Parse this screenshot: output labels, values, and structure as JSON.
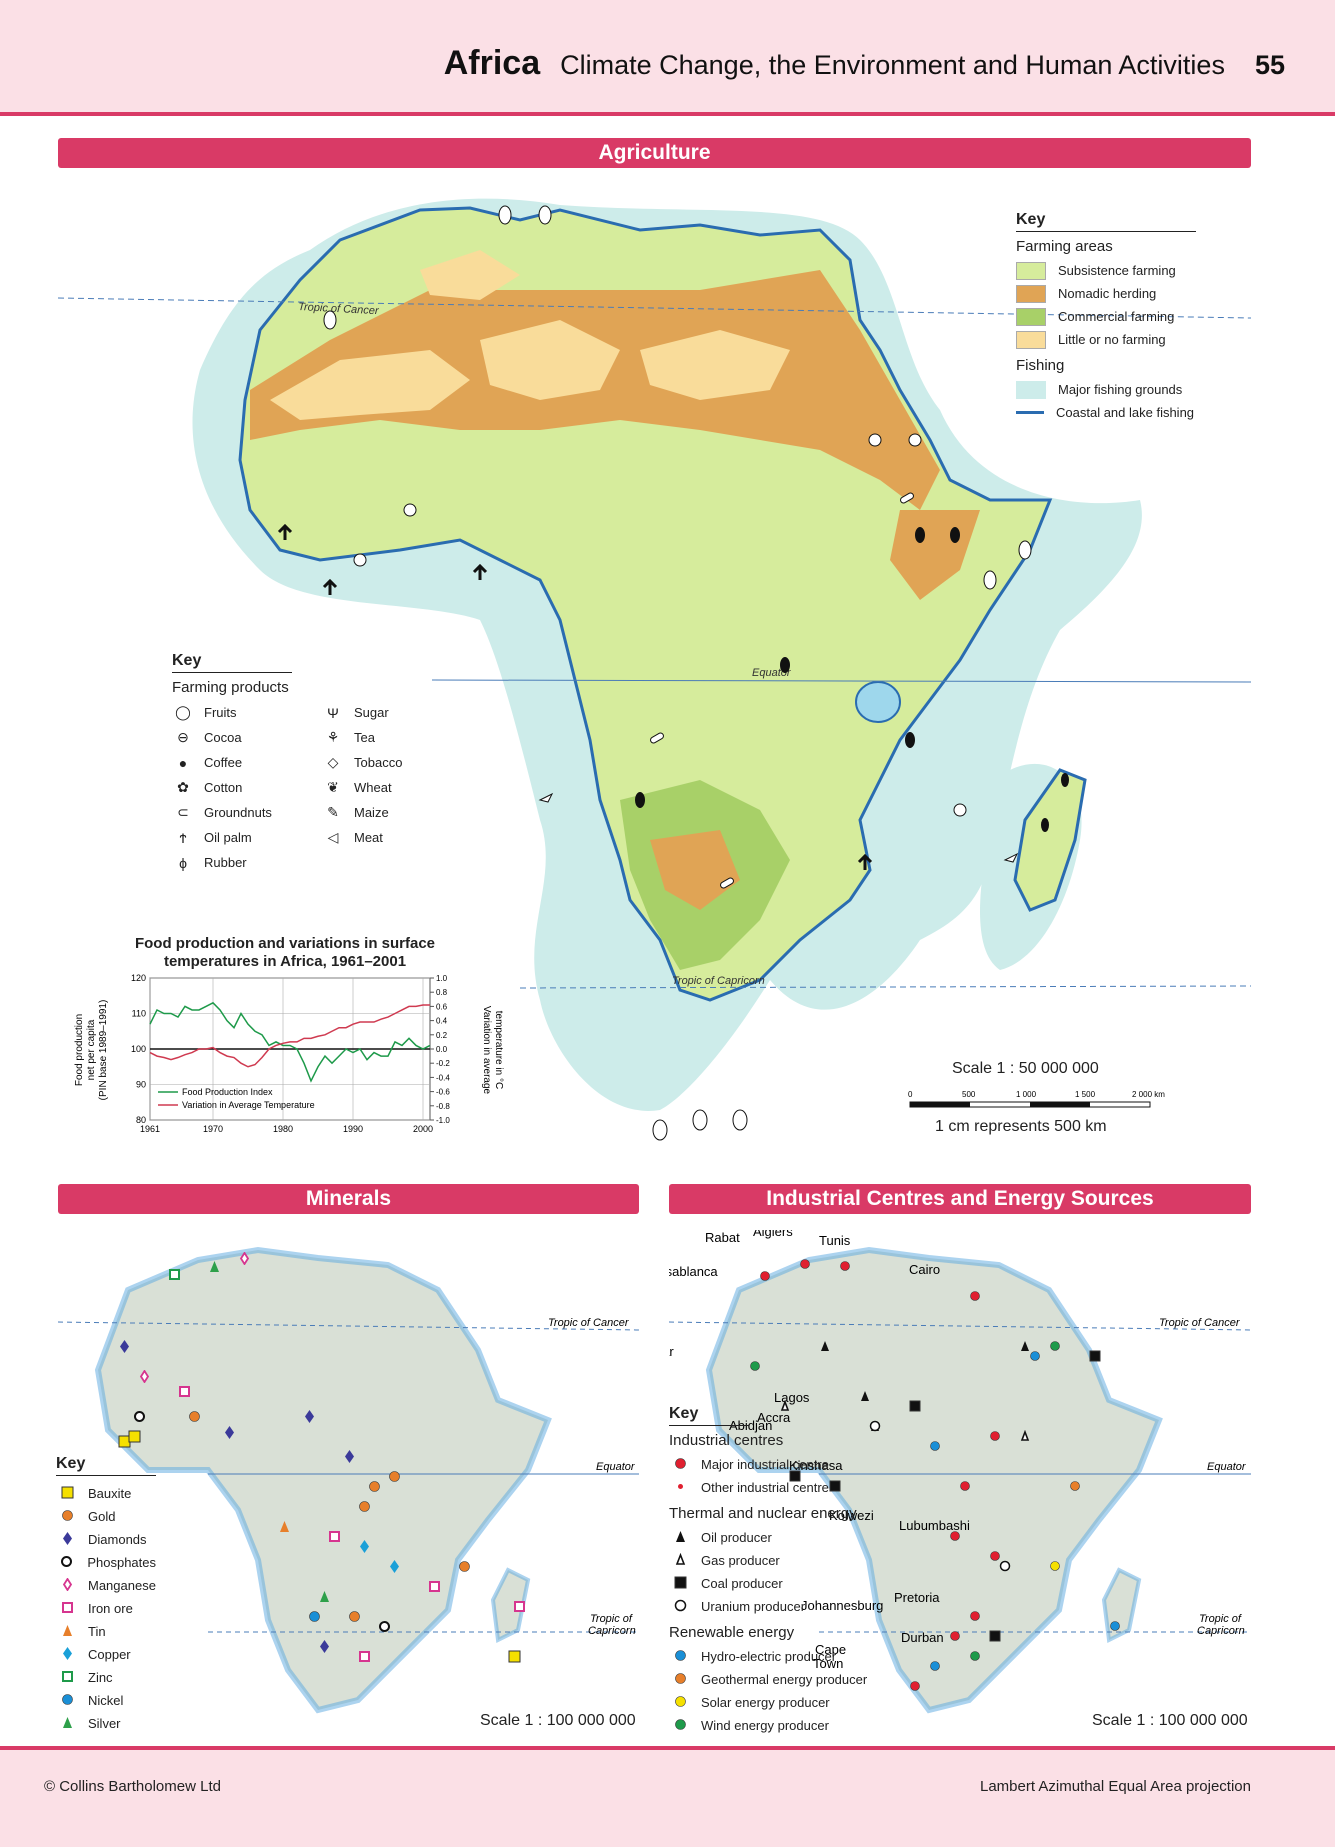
{
  "header": {
    "region": "Africa",
    "subtitle": "Climate Change, the Environment and Human Activities",
    "page": "55"
  },
  "banners": {
    "agriculture": "Agriculture",
    "minerals": "Minerals",
    "industry": "Industrial Centres and Energy Sources"
  },
  "map_labels": {
    "tropic_cancer": "Tropic of Cancer",
    "equator": "Equator",
    "tropic_capricorn": "Tropic of Capricorn",
    "tropic_of": "Tropic of",
    "capricorn": "Capricorn"
  },
  "agri_key": {
    "title": "Key",
    "farming_title": "Farming areas",
    "farming": [
      {
        "label": "Subsistence farming",
        "color": "#d6ec9c"
      },
      {
        "label": "Nomadic herding",
        "color": "#e0a455"
      },
      {
        "label": "Commercial farming",
        "color": "#a8d068"
      },
      {
        "label": "Little or no farming",
        "color": "#f9dc9a"
      }
    ],
    "fishing_title": "Fishing",
    "fishing": [
      {
        "label": "Major fishing grounds",
        "color": "#cdecea"
      },
      {
        "label": "Coastal and lake fishing",
        "color": "#2a6cb0"
      }
    ]
  },
  "products_key": {
    "title": "Key",
    "subtitle": "Farming products",
    "col1": [
      {
        "label": "Fruits",
        "icon": "fruit-icon"
      },
      {
        "label": "Cocoa",
        "icon": "cocoa-icon"
      },
      {
        "label": "Coffee",
        "icon": "coffee-icon"
      },
      {
        "label": "Cotton",
        "icon": "cotton-icon"
      },
      {
        "label": "Groundnuts",
        "icon": "groundnuts-icon"
      },
      {
        "label": "Oil palm",
        "icon": "oil-palm-icon"
      },
      {
        "label": "Rubber",
        "icon": "rubber-icon"
      }
    ],
    "col2": [
      {
        "label": "Sugar",
        "icon": "sugar-icon"
      },
      {
        "label": "Tea",
        "icon": "tea-icon"
      },
      {
        "label": "Tobacco",
        "icon": "tobacco-icon"
      },
      {
        "label": "Wheat",
        "icon": "wheat-icon"
      },
      {
        "label": "Maize",
        "icon": "maize-icon"
      },
      {
        "label": "Meat",
        "icon": "meat-icon"
      }
    ]
  },
  "agri_scale": {
    "ratio": "Scale 1 : 50 000 000",
    "ticks": [
      "0",
      "500",
      "1 000",
      "1 500",
      "2 000 km"
    ],
    "note": "1 cm represents 500 km"
  },
  "chart_data": {
    "type": "line",
    "title_line1": "Food production and variations in surface",
    "title_line2": "temperatures in Africa, 1961–2001",
    "ylabel_left_1": "Food production",
    "ylabel_left_2": "net per capita",
    "ylabel_left_3": "(PIN base 1989–1991)",
    "ylabel_right_1": "Variation in average",
    "ylabel_right_2": "temperature in °C",
    "xticks": [
      "1961",
      "1970",
      "1980",
      "1990",
      "2000"
    ],
    "yticks_left": [
      "80",
      "90",
      "100",
      "110",
      "120"
    ],
    "yticks_right": [
      "-1.0",
      "-0.8",
      "-0.6",
      "-0.4",
      "-0.2",
      "0.0",
      "0.2",
      "0.4",
      "0.6",
      "0.8",
      "1.0"
    ],
    "ylim_left": [
      80,
      120
    ],
    "ylim_right": [
      -1.0,
      1.0
    ],
    "xlim": [
      1961,
      2001
    ],
    "series": [
      {
        "name": "Food Production Index",
        "color": "#1e9a4a",
        "axis": "left",
        "x": [
          1961,
          1962,
          1963,
          1964,
          1965,
          1966,
          1967,
          1968,
          1969,
          1970,
          1971,
          1972,
          1973,
          1974,
          1975,
          1976,
          1977,
          1978,
          1979,
          1980,
          1981,
          1982,
          1983,
          1984,
          1985,
          1986,
          1987,
          1988,
          1989,
          1990,
          1991,
          1992,
          1993,
          1994,
          1995,
          1996,
          1997,
          1998,
          1999,
          2000,
          2001
        ],
        "values": [
          107,
          111,
          110,
          110,
          109,
          112,
          111,
          111,
          112,
          113,
          111,
          108,
          106,
          110,
          107,
          105,
          104,
          101,
          102,
          101,
          101,
          100,
          96,
          91,
          95,
          98,
          96,
          98,
          100,
          99,
          100,
          97,
          99,
          98,
          98,
          102,
          101,
          103,
          101,
          100,
          101
        ]
      },
      {
        "name": "Variation in Average Temperature",
        "color": "#cf3a50",
        "axis": "right",
        "x": [
          1961,
          1962,
          1963,
          1964,
          1965,
          1966,
          1967,
          1968,
          1969,
          1970,
          1971,
          1972,
          1973,
          1974,
          1975,
          1976,
          1977,
          1978,
          1979,
          1980,
          1981,
          1982,
          1983,
          1984,
          1985,
          1986,
          1987,
          1988,
          1989,
          1990,
          1991,
          1992,
          1993,
          1994,
          1995,
          1996,
          1997,
          1998,
          1999,
          2000,
          2001
        ],
        "values": [
          -0.05,
          -0.1,
          -0.12,
          -0.15,
          -0.12,
          -0.08,
          -0.05,
          0.0,
          0.0,
          0.02,
          -0.05,
          -0.1,
          -0.12,
          -0.2,
          -0.25,
          -0.22,
          -0.12,
          0.0,
          0.05,
          0.08,
          0.1,
          0.1,
          0.15,
          0.15,
          0.18,
          0.2,
          0.25,
          0.3,
          0.3,
          0.35,
          0.38,
          0.38,
          0.38,
          0.42,
          0.45,
          0.5,
          0.55,
          0.6,
          0.6,
          0.62,
          0.62
        ]
      }
    ]
  },
  "minerals_key": {
    "title": "Key",
    "items": [
      {
        "label": "Bauxite",
        "icon": "square-filled-icon",
        "color": "#f5e000"
      },
      {
        "label": "Gold",
        "icon": "circle-filled-icon",
        "color": "#e77f2a"
      },
      {
        "label": "Diamonds",
        "icon": "diamond-filled-icon",
        "color": "#3b3a9a"
      },
      {
        "label": "Phosphates",
        "icon": "circle-open-icon",
        "color": "#111111"
      },
      {
        "label": "Manganese",
        "icon": "diamond-open-icon",
        "color": "#d6358f"
      },
      {
        "label": "Iron ore",
        "icon": "square-open-icon",
        "color": "#d6358f"
      },
      {
        "label": "Tin",
        "icon": "triangle-filled-icon",
        "color": "#e77f2a"
      },
      {
        "label": "Copper",
        "icon": "diamond-filled-icon",
        "color": "#1aa0d8"
      },
      {
        "label": "Zinc",
        "icon": "square-open-icon",
        "color": "#1e9a4a"
      },
      {
        "label": "Nickel",
        "icon": "circle-filled-icon",
        "color": "#1a8fd6"
      },
      {
        "label": "Silver",
        "icon": "triangle-filled-icon",
        "color": "#2ea04a"
      }
    ]
  },
  "minerals_scale": "Scale 1 : 100 000 000",
  "industry_key": {
    "title": "Key",
    "sec1": "Industrial centres",
    "ind": [
      {
        "label": "Major industrial centre",
        "icon": "circle-filled-icon",
        "color": "#e02030"
      },
      {
        "label": "Other industrial centre",
        "icon": "dot-icon",
        "color": "#e02030"
      }
    ],
    "sec2": "Thermal and nuclear energy",
    "thermal": [
      {
        "label": "Oil producer",
        "icon": "triangle-filled-icon",
        "color": "#111111"
      },
      {
        "label": "Gas producer",
        "icon": "triangle-open-icon",
        "color": "#111111"
      },
      {
        "label": "Coal producer",
        "icon": "square-filled-icon",
        "color": "#111111"
      },
      {
        "label": "Uranium producer",
        "icon": "radiation-icon",
        "color": "#111111"
      }
    ],
    "sec3": "Renewable energy",
    "renew": [
      {
        "label": "Hydro-electric producer",
        "icon": "circle-filled-icon",
        "color": "#1a8fd6"
      },
      {
        "label": "Geothermal energy producer",
        "icon": "circle-filled-icon",
        "color": "#e77f2a"
      },
      {
        "label": "Solar energy producer",
        "icon": "circle-filled-icon",
        "color": "#f5e000"
      },
      {
        "label": "Wind energy producer",
        "icon": "circle-filled-icon",
        "color": "#1e9a4a"
      }
    ]
  },
  "industry_scale": "Scale 1 : 100 000 000",
  "cities": [
    "Rabat",
    "Algiers",
    "Tunis",
    "Casablanca",
    "Cairo",
    "Dakar",
    "Lagos",
    "Accra",
    "Abidjan",
    "Kinshasa",
    "Kolwezi",
    "Lubumbashi",
    "Pretoria",
    "Johannesburg",
    "Durban",
    "Cape",
    "Town"
  ],
  "footer": {
    "left": "© Collins Bartholomew Ltd",
    "right": "Lambert Azimuthal Equal Area projection"
  }
}
